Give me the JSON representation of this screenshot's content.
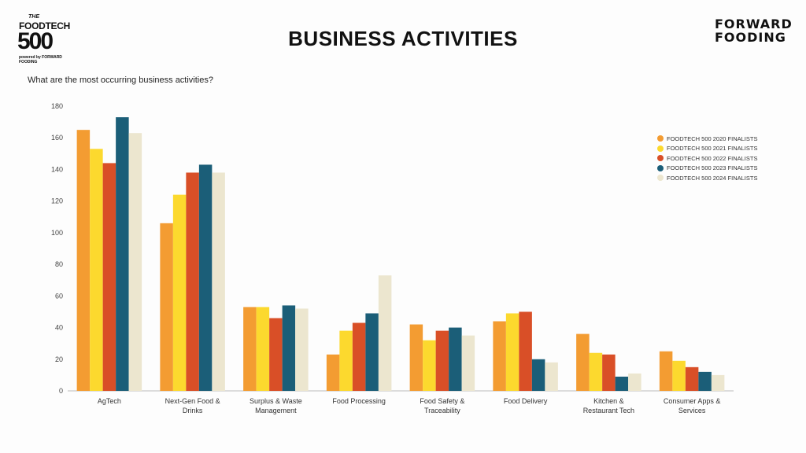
{
  "logo_left": {
    "the": "THE",
    "foodtech": "FOODTECH",
    "number": "500",
    "powered_by": "powered by FORWARD FOODING"
  },
  "title": "BUSINESS ACTIVITIES",
  "logo_right": {
    "line1": "FORWARD",
    "line2": "FOODING"
  },
  "question": "What are the most occurring business activities?",
  "chart_data": {
    "type": "bar",
    "title": "BUSINESS ACTIVITIES",
    "subtitle": "What are the most occurring business activities?",
    "xlabel": "",
    "ylabel": "",
    "ylim": [
      0,
      180
    ],
    "yticks": [
      0,
      20,
      40,
      60,
      80,
      100,
      120,
      140,
      160,
      180
    ],
    "grid": false,
    "legend_position": "right",
    "categories": [
      [
        "AgTech"
      ],
      [
        "Next-Gen Food &",
        "Drinks"
      ],
      [
        "Surplus & Waste",
        "Management"
      ],
      [
        "Food Processing"
      ],
      [
        "Food Safety &",
        "Traceability"
      ],
      [
        "Food Delivery"
      ],
      [
        "Kitchen &",
        "Restaurant Tech"
      ],
      [
        "Consumer Apps &",
        "Services"
      ]
    ],
    "series": [
      {
        "name": "FOODTECH 500 2020 FINALISTS",
        "color": "#f39c32",
        "values": [
          165,
          106,
          53,
          23,
          42,
          44,
          36,
          25
        ]
      },
      {
        "name": "FOODTECH 500 2021 FINALISTS",
        "color": "#fcd92e",
        "values": [
          153,
          124,
          53,
          38,
          32,
          49,
          24,
          19
        ]
      },
      {
        "name": "FOODTECH 500 2022 FINALISTS",
        "color": "#d94f27",
        "values": [
          144,
          138,
          46,
          43,
          38,
          50,
          23,
          15
        ]
      },
      {
        "name": "FOODTECH 500 2023 FINALISTS",
        "color": "#1b5e78",
        "values": [
          173,
          143,
          54,
          49,
          40,
          20,
          9,
          12
        ]
      },
      {
        "name": "FOODTECH 500 2024 FINALISTS",
        "color": "#ece6cf",
        "values": [
          163,
          138,
          52,
          73,
          35,
          18,
          11,
          10
        ]
      }
    ]
  }
}
